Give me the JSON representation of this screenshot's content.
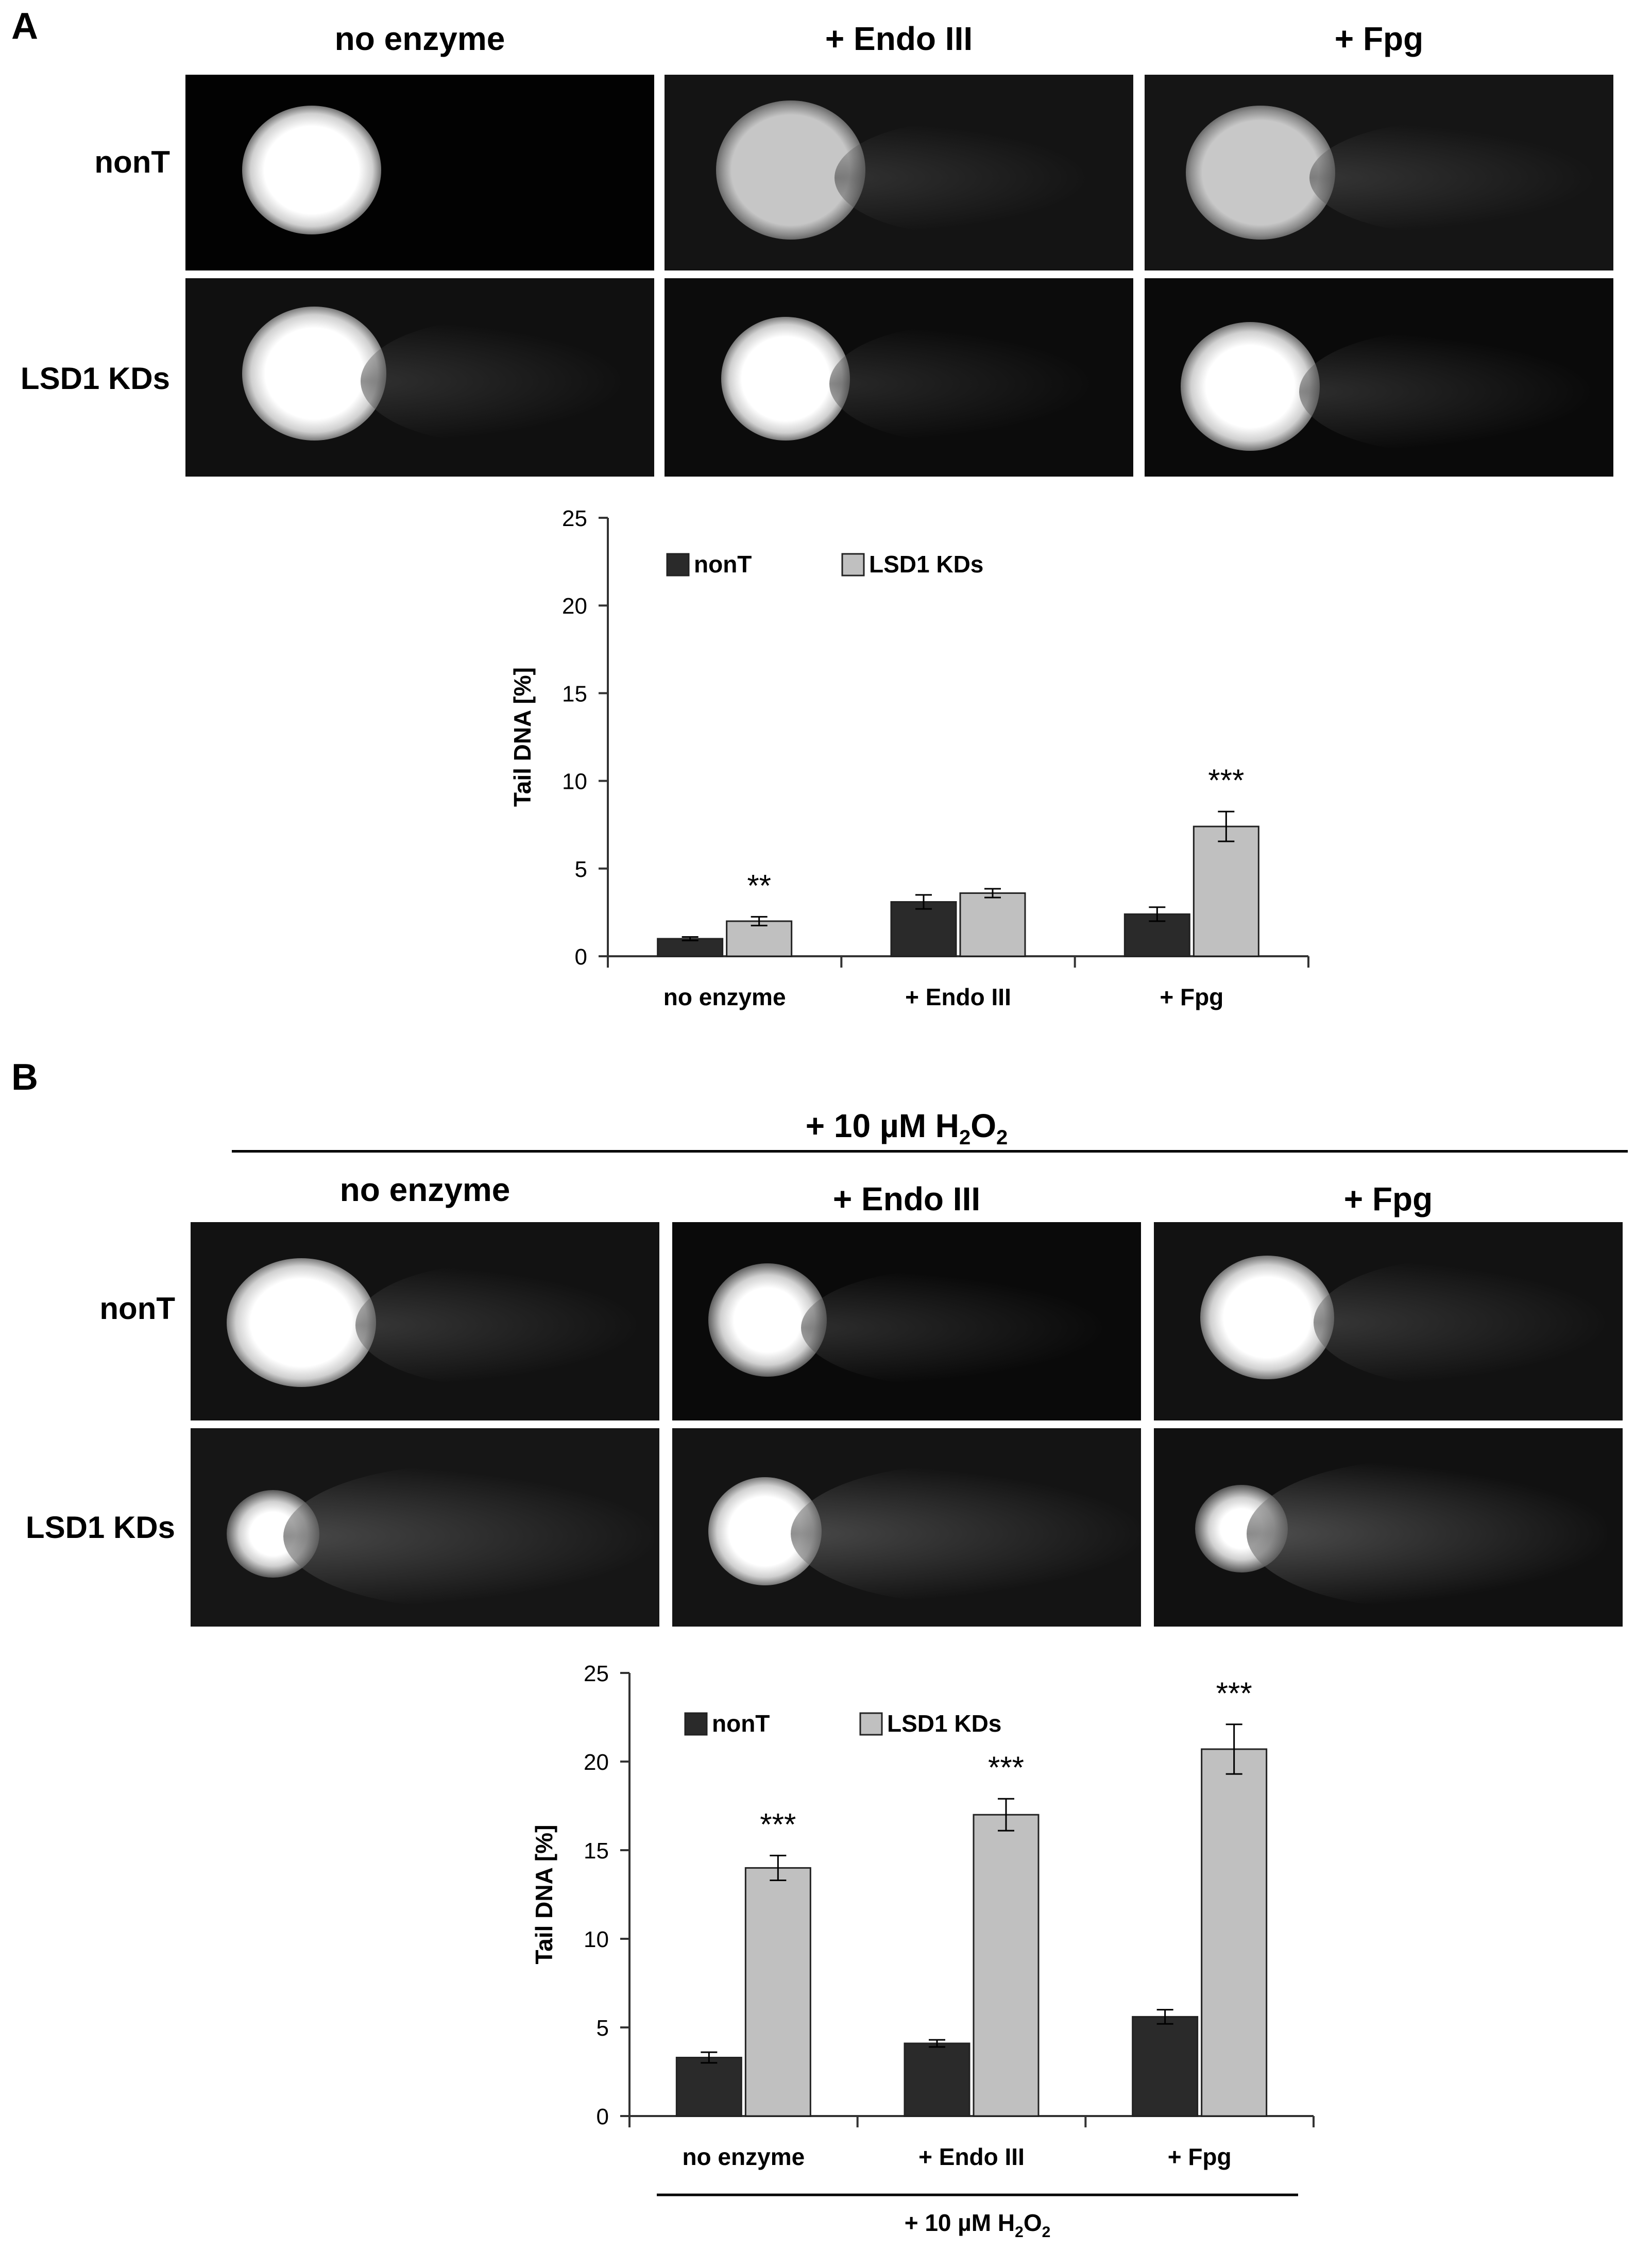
{
  "panel_a": {
    "letter": "A",
    "columns": [
      "no enzyme",
      "+ Endo III",
      "+ Fpg"
    ],
    "rows": [
      "nonT",
      "LSD1 KDs"
    ]
  },
  "panel_b": {
    "letter": "B",
    "treatment_label": "+ 10 µM H",
    "treatment_sub1": "2",
    "treatment_mid": "O",
    "treatment_sub2": "2",
    "columns": [
      "no enzyme",
      "+ Endo III",
      "+ Fpg"
    ],
    "rows": [
      "nonT",
      "LSD1 KDs"
    ]
  },
  "chart_data": [
    {
      "type": "bar",
      "title": "",
      "xlabel": "",
      "ylabel": "Tail DNA [%]",
      "ylim": [
        0,
        25
      ],
      "yticks": [
        "0",
        "5",
        "10",
        "15",
        "20",
        "25"
      ],
      "categories": [
        "no enzyme",
        "+ Endo III",
        "+ Fpg"
      ],
      "series": [
        {
          "name": "nonT",
          "color": "#2a2a2a",
          "values": [
            1.0,
            3.1,
            2.4
          ],
          "errors": [
            0.1,
            0.4,
            0.4
          ]
        },
        {
          "name": "LSD1 KDs",
          "color": "#c0c0c0",
          "values": [
            2.0,
            3.6,
            7.4
          ],
          "errors": [
            0.25,
            0.25,
            0.85
          ]
        }
      ],
      "significance": [
        "**",
        "",
        "***"
      ],
      "legend": "top-left",
      "grid": false
    },
    {
      "type": "bar",
      "title": "",
      "xlabel": "",
      "ylabel": "Tail DNA [%]",
      "ylim": [
        0,
        25
      ],
      "yticks": [
        "0",
        "5",
        "10",
        "15",
        "20",
        "25"
      ],
      "categories": [
        "no enzyme",
        "+ Endo III",
        "+ Fpg"
      ],
      "series": [
        {
          "name": "nonT",
          "color": "#2a2a2a",
          "values": [
            3.3,
            4.1,
            5.6
          ],
          "errors": [
            0.3,
            0.2,
            0.4
          ]
        },
        {
          "name": "LSD1 KDs",
          "color": "#c0c0c0",
          "values": [
            14.0,
            17.0,
            20.7
          ],
          "errors": [
            0.7,
            0.9,
            1.4
          ]
        }
      ],
      "significance": [
        "***",
        "***",
        "***"
      ],
      "legend": "top-left",
      "grid": false,
      "x_group_label": "+ 10 µM H2O2"
    }
  ]
}
